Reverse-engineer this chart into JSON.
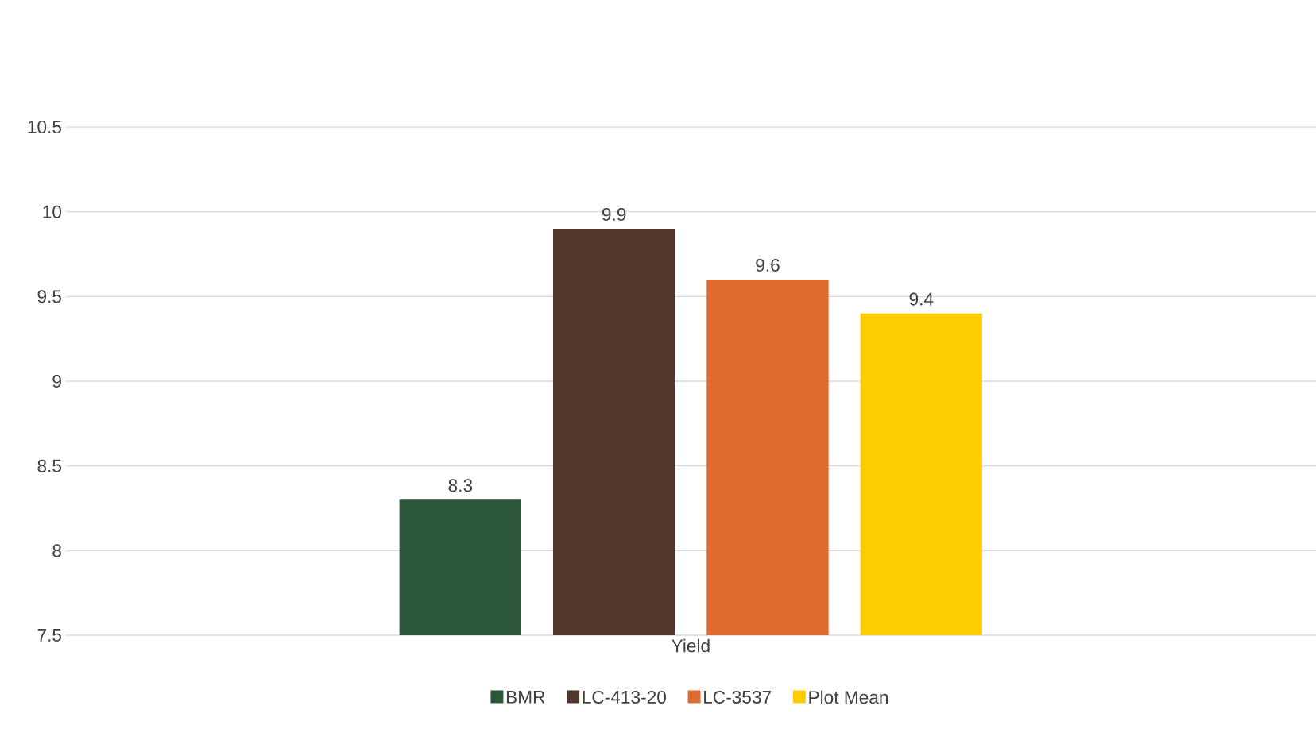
{
  "chart_data": {
    "type": "bar",
    "categories": [
      "Yield"
    ],
    "series": [
      {
        "name": "BMR",
        "color": "#2a5537",
        "values": [
          8.3
        ]
      },
      {
        "name": "LC-413-20",
        "color": "#50362a",
        "values": [
          9.9
        ]
      },
      {
        "name": "LC-3537",
        "color": "#e06b31",
        "values": [
          9.6
        ]
      },
      {
        "name": "Plot Mean",
        "color": "#fdcc00",
        "values": [
          9.4
        ]
      }
    ],
    "ylim": [
      7.5,
      10.5
    ],
    "yticks": [
      7.5,
      8,
      8.5,
      9,
      9.5,
      10,
      10.5
    ],
    "grid": "y",
    "legend": "bottom",
    "data_labels": true
  }
}
